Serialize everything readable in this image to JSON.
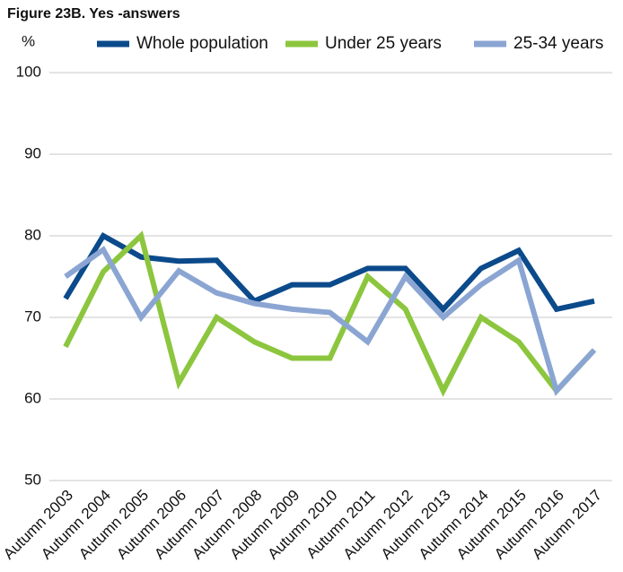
{
  "chart_data": {
    "type": "line",
    "title": "Figure 23B. Yes -answers",
    "y_label": "%",
    "categories": [
      "Autumn 2003",
      "Autumn 2004",
      "Autumn 2005",
      "Autumn 2006",
      "Autumn 2007",
      "Autumn 2008",
      "Autumn 2009",
      "Autumn 2010",
      "Autumn 2011",
      "Autumn 2012",
      "Autumn 2013",
      "Autumn 2014",
      "Autumn 2015",
      "Autumn 2016",
      "Autumn 2017"
    ],
    "series": [
      {
        "name": "Whole population",
        "color": "#0b4a8b",
        "values": [
          72.3,
          80,
          77.4,
          76.9,
          77,
          72,
          74,
          74,
          76,
          76,
          71,
          76,
          78.2,
          71,
          72
        ]
      },
      {
        "name": "Under 25 years",
        "color": "#8cc63e",
        "values": [
          66.4,
          75.6,
          80,
          62,
          70,
          67,
          65,
          65,
          75,
          71,
          61,
          70,
          67,
          61,
          66
        ]
      },
      {
        "name": "25-34 years",
        "color": "#8ba5d3",
        "values": [
          75,
          78.3,
          70,
          75.7,
          73,
          71.7,
          71,
          70.6,
          67,
          75,
          70,
          74,
          77,
          61,
          66
        ]
      }
    ],
    "ylim": [
      50,
      100
    ],
    "yticks": [
      50,
      60,
      70,
      80,
      90,
      100
    ],
    "grid": true,
    "legend": "top"
  }
}
